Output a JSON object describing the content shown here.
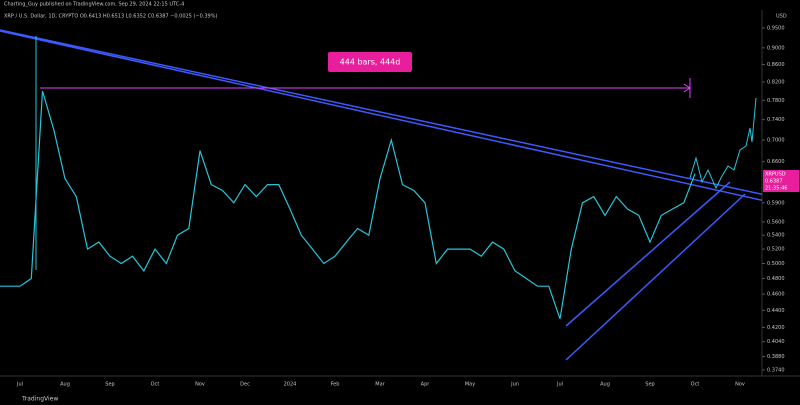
{
  "header": "Charting_Guy published on TradingView.com, Sep 29, 2024 22:15 UTC-4",
  "legend_text": "XRP / U.S. Dollar, 1D, CRYPTO  O0.6413  H0.6513  L0.6352  C0.6387  −0.0025 (−0.39%)",
  "currency": "USD",
  "annotation": "444 bars, 444d",
  "price_tag": {
    "symbol": "XRPUSD",
    "price": "0.6387",
    "countdown": "21:35:46"
  },
  "footer": "TradingView",
  "chart_data": {
    "type": "line",
    "log_scale": true,
    "categories": [
      null,
      null,
      "Jul",
      null,
      null,
      null,
      "Aug",
      null,
      null,
      null,
      "Sep",
      null,
      null,
      null,
      "Oct",
      null,
      null,
      null,
      "Nov",
      null,
      null,
      null,
      "Dec",
      null,
      null,
      null,
      "2024",
      null,
      null,
      null,
      "Feb",
      null,
      null,
      null,
      "Mar",
      null,
      null,
      null,
      "Apr",
      null,
      null,
      null,
      "May",
      null,
      null,
      null,
      "Jun",
      null,
      null,
      null,
      "Jul",
      null,
      null,
      null,
      "Aug",
      null,
      null,
      null,
      "Sep",
      null,
      null,
      null,
      "Oct",
      null,
      null,
      null,
      "Nov",
      null,
      null
    ],
    "series": [
      {
        "name": "XRPUSD",
        "color": "#26c6da",
        "values": [
          0.47,
          0.47,
          0.47,
          0.48,
          0.8,
          0.72,
          0.63,
          0.6,
          0.52,
          0.53,
          0.51,
          0.5,
          0.51,
          0.49,
          0.52,
          0.5,
          0.54,
          0.55,
          0.68,
          0.62,
          0.61,
          0.59,
          0.62,
          0.6,
          0.62,
          0.62,
          0.58,
          0.54,
          0.52,
          0.5,
          0.51,
          0.53,
          0.55,
          0.54,
          0.63,
          0.7,
          0.62,
          0.61,
          0.59,
          0.5,
          0.52,
          0.52,
          0.52,
          0.51,
          0.53,
          0.52,
          0.49,
          0.48,
          0.47,
          0.47,
          0.43,
          0.52,
          0.59,
          0.6,
          0.57,
          0.6,
          0.58,
          0.57,
          0.53,
          0.57,
          0.58,
          0.59,
          0.6387,
          null,
          null,
          null,
          null,
          null,
          null
        ]
      }
    ],
    "ylim": [
      0.374,
      0.95
    ],
    "yticks": [
      {
        "value": 0.95,
        "label": "0.9500"
      },
      {
        "value": 0.9,
        "label": "0.9000"
      },
      {
        "value": 0.86,
        "label": "0.8600"
      },
      {
        "value": 0.82,
        "label": "0.8200"
      },
      {
        "value": 0.78,
        "label": "0.7800"
      },
      {
        "value": 0.74,
        "label": "0.7400"
      },
      {
        "value": 0.7,
        "label": "0.7000"
      },
      {
        "value": 0.66,
        "label": "0.6600"
      },
      {
        "value": 0.59,
        "label": "0.5900"
      },
      {
        "value": 0.56,
        "label": "0.5600"
      },
      {
        "value": 0.54,
        "label": "0.5400"
      },
      {
        "value": 0.52,
        "label": "0.5200"
      },
      {
        "value": 0.5,
        "label": "0.5000"
      },
      {
        "value": 0.48,
        "label": "0.4800"
      },
      {
        "value": 0.46,
        "label": "0.4600"
      },
      {
        "value": 0.44,
        "label": "0.4400"
      },
      {
        "value": 0.42,
        "label": "0.4200"
      },
      {
        "value": 0.404,
        "label": "0.4040"
      },
      {
        "value": 0.388,
        "label": "0.3880"
      },
      {
        "value": 0.374,
        "label": "0.3740"
      }
    ],
    "grid": false
  }
}
